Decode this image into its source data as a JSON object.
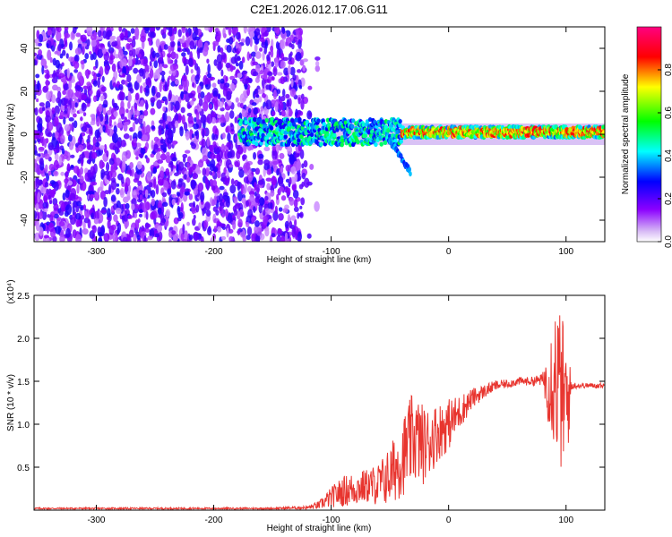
{
  "figure_title": "C2E1.2026.012.17.06.G11",
  "colors": {
    "background": "#ffffff",
    "snr_line": "#e8352f",
    "axis": "#000000"
  },
  "chart_data": [
    {
      "type": "heatmap",
      "name": "spectrogram",
      "xlabel": "Height of straight line (km)",
      "ylabel": "Frequency (Hz)",
      "xlim": [
        -353,
        133
      ],
      "ylim": [
        -50,
        50
      ],
      "xticks": [
        -300,
        -200,
        -100,
        0,
        100
      ],
      "yticks": [
        -40,
        -20,
        0,
        20,
        40
      ],
      "grid": false,
      "description_of_data": [
        {
          "x_range": [
            -353,
            -125
          ],
          "freq_range": [
            -50,
            50
          ],
          "level": "scattered noise, amplitude ~0.1-0.2 (purple)"
        },
        {
          "x_range": [
            -175,
            -35
          ],
          "freq_center": 0,
          "freq_halfwidth": 6,
          "level": "signal ~0.3-0.5 (blue/cyan/green)"
        },
        {
          "x_range": [
            -40,
            133
          ],
          "freq_center": 1,
          "freq_halfwidth": 3,
          "level": "strong signal ~0.6-0.9 (green/yellow/red)"
        },
        {
          "x_range": [
            -50,
            -30
          ],
          "freq_center": -12,
          "freq_halfwidth": 5,
          "level": "diagonal tail ~0.3"
        }
      ],
      "colorbar": {
        "label": "Normalized spectral amplitude",
        "range": [
          0,
          1
        ],
        "ticks": [
          "0.0",
          "0.2",
          "0.4",
          "0.6",
          "0.8"
        ],
        "tick_values": [
          0.0,
          0.2,
          0.4,
          0.6,
          0.8
        ],
        "colormap": [
          "#ffffff",
          "#8b00ff",
          "#0000ff",
          "#00ffff",
          "#00ff00",
          "#ffff00",
          "#ff0000",
          "#ff0080"
        ]
      }
    },
    {
      "type": "line",
      "name": "snr",
      "xlabel": "Height of straight line (km)",
      "ylabel": "SNR (10 * v/v)",
      "y_scale_label": "(x10⁴)",
      "xlim": [
        -353,
        133
      ],
      "ylim": [
        0,
        2.5
      ],
      "xticks": [
        -300,
        -200,
        -100,
        0,
        100
      ],
      "yticks": [
        "0.5",
        "1.0",
        "1.5",
        "2.0",
        "2.5"
      ],
      "ytick_values": [
        0.5,
        1.0,
        1.5,
        2.0,
        2.5
      ],
      "grid": false,
      "series": [
        {
          "name": "SNR",
          "x": [
            -353,
            -300,
            -250,
            -200,
            -150,
            -120,
            -110,
            -100,
            -90,
            -80,
            -70,
            -60,
            -50,
            -40,
            -30,
            -20,
            -10,
            0,
            10,
            20,
            30,
            40,
            50,
            60,
            70,
            80,
            85,
            90,
            95,
            100,
            105,
            110,
            120,
            133
          ],
          "y": [
            0.02,
            0.02,
            0.02,
            0.02,
            0.02,
            0.03,
            0.06,
            0.15,
            0.22,
            0.25,
            0.28,
            0.3,
            0.4,
            0.6,
            0.85,
            0.75,
            0.9,
            1.0,
            1.15,
            1.3,
            1.38,
            1.45,
            1.47,
            1.5,
            1.5,
            1.52,
            1.5,
            1.6,
            1.4,
            1.2,
            1.45,
            1.45,
            1.45,
            1.45
          ],
          "noise_amplitude": [
            0.01,
            0.01,
            0.01,
            0.01,
            0.01,
            0.02,
            0.05,
            0.12,
            0.18,
            0.2,
            0.2,
            0.25,
            0.35,
            0.45,
            0.55,
            0.45,
            0.35,
            0.3,
            0.2,
            0.12,
            0.08,
            0.06,
            0.05,
            0.05,
            0.05,
            0.07,
            0.5,
            0.9,
            0.95,
            0.9,
            0.05,
            0.03,
            0.03,
            0.03
          ]
        }
      ]
    }
  ]
}
